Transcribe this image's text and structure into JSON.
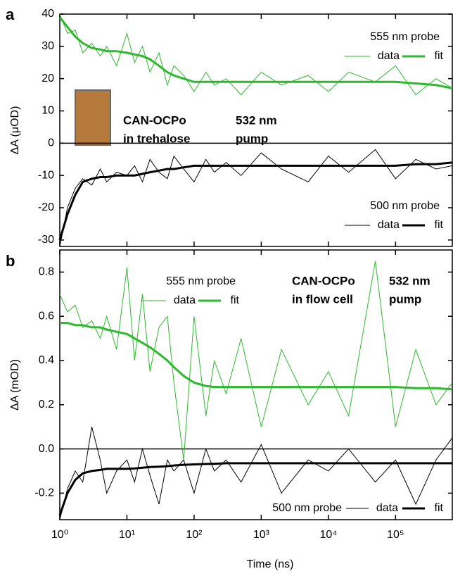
{
  "chart_data": [
    {
      "type": "line",
      "panel": "a",
      "ylabel": "ΔA (μOD)",
      "xscale": "log",
      "xlim": [
        1,
        700000
      ],
      "ylim": [
        -32,
        40
      ],
      "xticks": [
        1,
        10,
        100,
        1000,
        10000,
        100000
      ],
      "yticks": [
        -30,
        -20,
        -10,
        0,
        10,
        20,
        30,
        40
      ],
      "x": [
        1,
        1.3,
        1.7,
        2.2,
        3,
        4,
        5,
        7,
        10,
        13,
        17,
        22,
        30,
        40,
        50,
        70,
        100,
        150,
        200,
        300,
        500,
        1000,
        2000,
        5000,
        10000,
        20000,
        50000,
        100000,
        200000,
        400000,
        700000
      ],
      "annotations": [
        {
          "lines": [
            "CAN-OCPo",
            "in trehalose"
          ],
          "color": "#2db92d"
        },
        {
          "lines": [
            "532 nm",
            "pump"
          ],
          "color": "#000000"
        }
      ],
      "groups": [
        {
          "title": "555 nm probe",
          "color": "#2db92d",
          "series": [
            {
              "name": "data",
              "values": [
                40,
                34,
                35,
                28,
                31,
                27,
                30,
                24,
                34,
                25,
                30,
                22,
                28,
                18,
                24,
                21,
                16,
                22,
                18,
                20,
                15,
                22,
                18,
                21,
                16,
                22,
                19,
                24,
                15,
                20,
                17
              ]
            },
            {
              "name": "fit",
              "values": [
                39,
                36,
                33,
                31,
                29.5,
                29,
                28.5,
                28.5,
                28,
                27.5,
                27,
                26,
                24,
                22,
                21,
                20,
                19,
                19,
                19,
                19,
                19,
                19,
                19,
                19,
                19,
                19,
                19,
                19,
                18.5,
                18,
                17
              ]
            }
          ]
        },
        {
          "title": "500 nm probe",
          "color": "#000000",
          "series": [
            {
              "name": "data",
              "values": [
                -32,
                -20,
                -14,
                -11,
                -13,
                -8,
                -12,
                -9,
                -10,
                -7,
                -12,
                -5,
                -9,
                -11,
                -4,
                -8,
                -12,
                -5,
                -9,
                -6,
                -10,
                -3,
                -8,
                -12,
                -4,
                -9,
                -2,
                -11,
                -5,
                -8,
                -7
              ]
            },
            {
              "name": "fit",
              "values": [
                -30,
                -22,
                -16,
                -12,
                -11,
                -10.5,
                -10.5,
                -10,
                -10,
                -10,
                -9.5,
                -9,
                -8.5,
                -8,
                -8,
                -7.5,
                -7,
                -7,
                -7,
                -7,
                -7,
                -7,
                -7,
                -7,
                -7,
                -7,
                -7,
                -7,
                -6.5,
                -6.5,
                -6
              ]
            }
          ]
        }
      ]
    },
    {
      "type": "line",
      "panel": "b",
      "ylabel": "ΔA (mOD)",
      "xlabel": "Time (ns)",
      "xscale": "log",
      "xlim": [
        1,
        700000
      ],
      "ylim": [
        -0.32,
        0.9
      ],
      "xticks": [
        {
          "value": 1,
          "label": "10⁰"
        },
        {
          "value": 10,
          "label": "10¹"
        },
        {
          "value": 100,
          "label": "10²"
        },
        {
          "value": 1000,
          "label": "10³"
        },
        {
          "value": 10000,
          "label": "10⁴"
        },
        {
          "value": 100000,
          "label": "10⁵"
        }
      ],
      "yticks": [
        -0.2,
        {
          "value": 0,
          "label": "0.0"
        },
        0.2,
        0.4,
        0.6,
        0.8
      ],
      "x": [
        1,
        1.3,
        1.7,
        2.2,
        3,
        4,
        5,
        7,
        10,
        13,
        17,
        22,
        30,
        40,
        50,
        70,
        100,
        150,
        200,
        300,
        500,
        1000,
        2000,
        5000,
        10000,
        20000,
        50000,
        100000,
        200000,
        400000,
        700000
      ],
      "annotations": [
        {
          "lines": [
            "CAN-OCPo",
            "in flow cell"
          ],
          "color": "#2db92d"
        },
        {
          "lines": [
            "532 nm",
            "pump"
          ],
          "color": "#000000"
        }
      ],
      "groups": [
        {
          "title": "555 nm probe",
          "color": "#2db92d",
          "series": [
            {
              "name": "data",
              "values": [
                0.7,
                0.62,
                0.65,
                0.55,
                0.58,
                0.5,
                0.6,
                0.45,
                0.82,
                0.4,
                0.7,
                0.35,
                0.55,
                0.6,
                0.3,
                -0.05,
                0.6,
                0.15,
                0.4,
                0.25,
                0.5,
                0.1,
                0.45,
                0.2,
                0.35,
                0.15,
                0.85,
                0.1,
                0.45,
                0.2,
                0.3
              ]
            },
            {
              "name": "fit",
              "values": [
                0.57,
                0.57,
                0.56,
                0.56,
                0.55,
                0.55,
                0.54,
                0.53,
                0.52,
                0.5,
                0.48,
                0.46,
                0.43,
                0.4,
                0.37,
                0.33,
                0.3,
                0.285,
                0.28,
                0.28,
                0.28,
                0.28,
                0.28,
                0.28,
                0.28,
                0.28,
                0.28,
                0.28,
                0.275,
                0.275,
                0.27
              ]
            }
          ]
        },
        {
          "title": "500 nm probe",
          "color": "#000000",
          "series": [
            {
              "name": "data",
              "values": [
                -0.32,
                -0.18,
                -0.1,
                -0.15,
                0.1,
                -0.05,
                -0.2,
                -0.1,
                -0.05,
                -0.15,
                0,
                -0.12,
                -0.25,
                -0.05,
                -0.1,
                -0.05,
                -0.2,
                0,
                -0.1,
                -0.05,
                -0.15,
                0.02,
                -0.2,
                -0.05,
                -0.1,
                0,
                -0.15,
                -0.05,
                -0.25,
                -0.05,
                0.05
              ]
            },
            {
              "name": "fit",
              "values": [
                -0.3,
                -0.2,
                -0.14,
                -0.11,
                -0.1,
                -0.095,
                -0.09,
                -0.09,
                -0.09,
                -0.088,
                -0.085,
                -0.082,
                -0.08,
                -0.078,
                -0.075,
                -0.072,
                -0.07,
                -0.068,
                -0.067,
                -0.065,
                -0.065,
                -0.065,
                -0.065,
                -0.065,
                -0.065,
                -0.065,
                -0.065,
                -0.065,
                -0.065,
                -0.065,
                -0.065
              ]
            }
          ]
        }
      ]
    }
  ]
}
